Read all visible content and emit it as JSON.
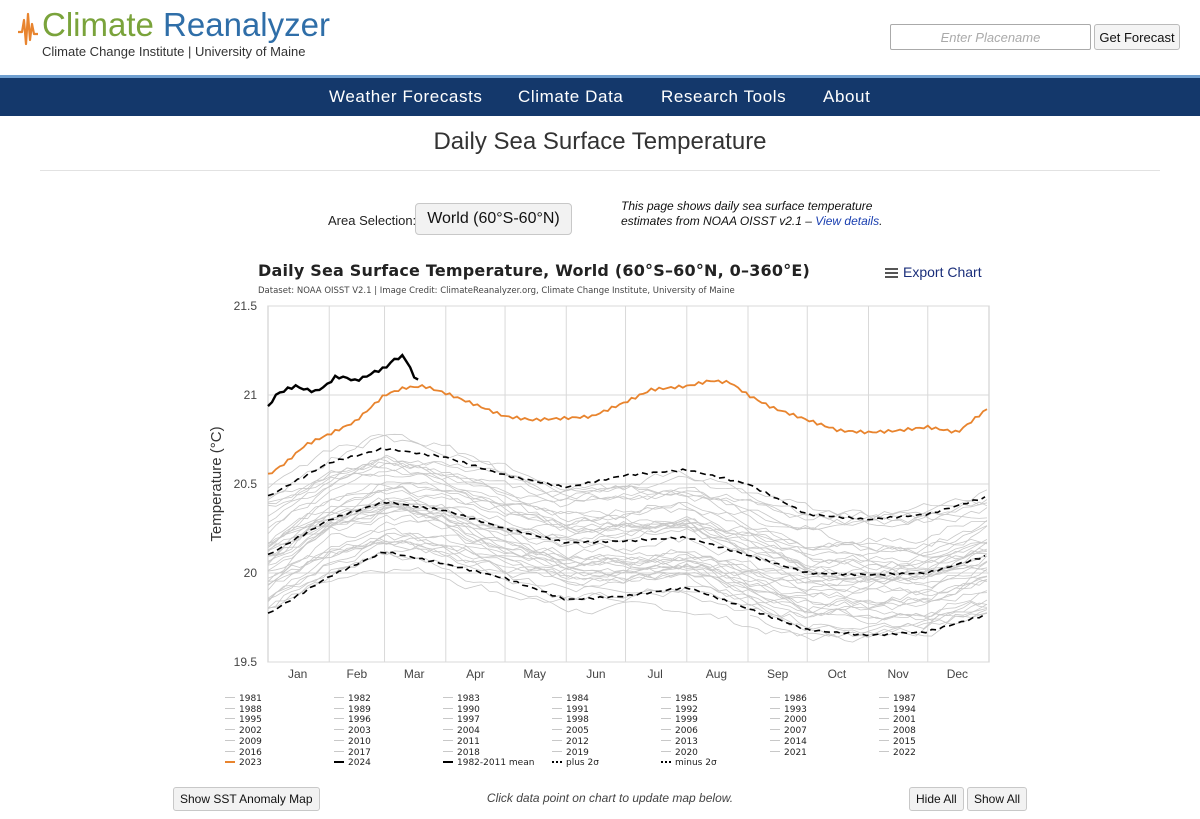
{
  "header": {
    "logo_word1": "Climate",
    "logo_word2": "Reanalyzer",
    "logo_subtitle": "Climate Change Institute | University of Maine",
    "search_placeholder": "Enter Placename",
    "forecast_button": "Get Forecast",
    "logo_icon": "waveform-icon"
  },
  "nav": {
    "items": [
      "Weather Forecasts",
      "Climate Data",
      "Research Tools",
      "About"
    ]
  },
  "page": {
    "title": "Daily Sea Surface Temperature",
    "area_label": "Area Selection:",
    "area_value": "World (60°S-60°N)",
    "intro_text": "This page shows daily sea surface temperature estimates from NOAA OISST v2.1 – ",
    "intro_link": "View details",
    "intro_end": ".",
    "export_label": "Export Chart",
    "export_icon": "menu-icon",
    "show_map_button": "Show SST Anomaly Map",
    "hint": "Click data point on chart to update map below.",
    "hide_all": "Hide All",
    "show_all": "Show All"
  },
  "colors": {
    "nav_bg": "#14386b",
    "accent_2023": "#e8842e",
    "line_2024": "#000000",
    "past_years": "#c8c8c8",
    "grid": "#d9d9d9"
  },
  "chart_data": {
    "type": "line",
    "title": "Daily Sea Surface Temperature, World (60°S–60°N, 0–360°E)",
    "subtitle": "Dataset: NOAA OISST V2.1 | Image Credit: ClimateReanalyzer.org, Climate Change Institute, University of Maine",
    "ylabel": "Temperature (°C)",
    "xlabel": "",
    "ylim": [
      19.5,
      21.5
    ],
    "yticks": [
      19.5,
      20,
      20.5,
      21,
      21.5
    ],
    "ytick_labels": [
      "19.5",
      "20",
      "20.5",
      "21",
      "21.5"
    ],
    "xlim": [
      1,
      366
    ],
    "month_labels": [
      "Jan",
      "Feb",
      "Mar",
      "Apr",
      "May",
      "Jun",
      "Jul",
      "Aug",
      "Sep",
      "Oct",
      "Nov",
      "Dec"
    ],
    "month_label_days": [
      16,
      46,
      75,
      106,
      136,
      167,
      197,
      228,
      259,
      289,
      320,
      350
    ],
    "month_grid_days": [
      32,
      60,
      91,
      121,
      152,
      182,
      213,
      244,
      274,
      305,
      335
    ],
    "grid": true,
    "legend_position": "bottom",
    "background_years": {
      "names": [
        "1981",
        "1982",
        "1983",
        "1984",
        "1985",
        "1986",
        "1987",
        "1988",
        "1989",
        "1990",
        "1991",
        "1992",
        "1993",
        "1994",
        "1995",
        "1996",
        "1997",
        "1998",
        "1999",
        "2000",
        "2001",
        "2002",
        "2003",
        "2004",
        "2005",
        "2006",
        "2007",
        "2008",
        "2009",
        "2010",
        "2011",
        "2012",
        "2013",
        "2014",
        "2015",
        "2016",
        "2017",
        "2018",
        "2019",
        "2020",
        "2021",
        "2022"
      ],
      "start_day": 244,
      "color": "#c8c8c8",
      "days": [
        1,
        32,
        60,
        91,
        121,
        152,
        182,
        213,
        244,
        274,
        305,
        335,
        366
      ],
      "1981_start_note": "",
      "offsets_c": [
        -0.28,
        -0.34,
        -0.2,
        -0.3,
        -0.22,
        -0.25,
        -0.26,
        -0.1,
        -0.24,
        -0.18,
        -0.12,
        -0.2,
        -0.22,
        -0.14,
        -0.08,
        -0.12,
        0.05,
        0.08,
        -0.15,
        -0.1,
        -0.04,
        0.0,
        0.02,
        0.0,
        0.05,
        0.06,
        -0.02,
        -0.05,
        0.06,
        0.12,
        0.02,
        0.08,
        0.1,
        0.16,
        0.26,
        0.3,
        0.2,
        0.22,
        0.3,
        0.32,
        0.24,
        0.28
      ]
    },
    "series": [
      {
        "name": "1982–2011 mean",
        "style": "dashed",
        "color": "#000000",
        "x": [
          1,
          32,
          60,
          91,
          121,
          152,
          182,
          213,
          244,
          274,
          305,
          335,
          366
        ],
        "y": [
          20.1,
          20.3,
          20.4,
          20.35,
          20.25,
          20.17,
          20.18,
          20.2,
          20.1,
          20.0,
          19.99,
          20.0,
          20.1
        ]
      },
      {
        "name": "plus 2σ",
        "style": "dashed",
        "color": "#000000",
        "x": [
          1,
          32,
          60,
          91,
          121,
          152,
          182,
          213,
          244,
          274,
          305,
          335,
          366
        ],
        "y": [
          20.43,
          20.62,
          20.7,
          20.65,
          20.55,
          20.48,
          20.55,
          20.58,
          20.5,
          20.33,
          20.3,
          20.33,
          20.43
        ]
      },
      {
        "name": "minus 2σ",
        "style": "dashed",
        "color": "#000000",
        "x": [
          1,
          32,
          60,
          91,
          121,
          152,
          182,
          213,
          244,
          274,
          305,
          335,
          366
        ],
        "y": [
          19.77,
          19.98,
          20.12,
          20.05,
          19.97,
          19.85,
          19.87,
          19.92,
          19.8,
          19.68,
          19.65,
          19.67,
          19.77
        ]
      },
      {
        "name": "2023",
        "style": "solid",
        "color": "#e8842e",
        "x": [
          1,
          10,
          20,
          32,
          45,
          60,
          70,
          80,
          91,
          105,
          121,
          135,
          152,
          165,
          182,
          195,
          213,
          225,
          235,
          244,
          256,
          274,
          290,
          305,
          320,
          335,
          350,
          366
        ],
        "y": [
          20.55,
          20.62,
          20.72,
          20.78,
          20.85,
          21.0,
          21.04,
          21.05,
          21.01,
          20.95,
          20.88,
          20.86,
          20.87,
          20.88,
          20.96,
          21.03,
          21.05,
          21.08,
          21.07,
          21.0,
          20.93,
          20.86,
          20.8,
          20.79,
          20.8,
          20.82,
          20.79,
          20.93
        ]
      },
      {
        "name": "2024",
        "style": "solid",
        "color": "#000000",
        "x": [
          1,
          5,
          10,
          15,
          20,
          25,
          30,
          35,
          40,
          45,
          50,
          55,
          60,
          65,
          70,
          73,
          75,
          77
        ],
        "y": [
          20.93,
          21.0,
          21.03,
          21.05,
          21.03,
          21.02,
          21.05,
          21.1,
          21.1,
          21.08,
          21.1,
          21.13,
          21.15,
          21.2,
          21.22,
          21.15,
          21.1,
          21.09
        ]
      }
    ],
    "legend": [
      "1981",
      "1982",
      "1983",
      "1984",
      "1985",
      "1986",
      "1987",
      "1988",
      "1989",
      "1990",
      "1991",
      "1992",
      "1993",
      "1994",
      "1995",
      "1996",
      "1997",
      "1998",
      "1999",
      "2000",
      "2001",
      "2002",
      "2003",
      "2004",
      "2005",
      "2006",
      "2007",
      "2008",
      "2009",
      "2010",
      "2011",
      "2012",
      "2013",
      "2014",
      "2015",
      "2016",
      "2017",
      "2018",
      "2019",
      "2020",
      "2021",
      "2022",
      "2023",
      "2024",
      "1982-2011 mean",
      "plus 2σ",
      "minus 2σ"
    ]
  }
}
